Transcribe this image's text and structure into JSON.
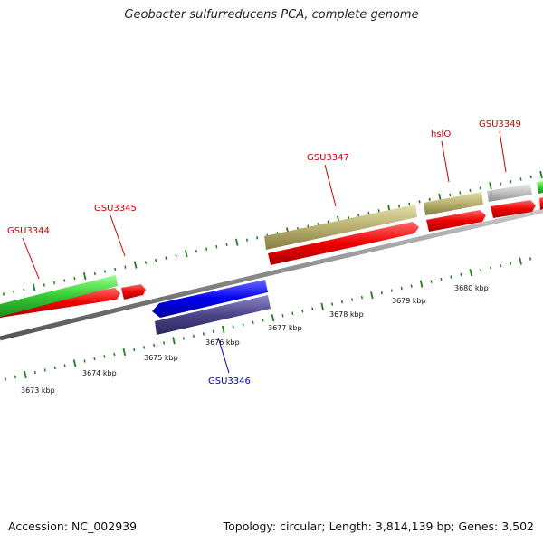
{
  "title": "Geobacter sulfurreducens PCA, complete genome",
  "footer": {
    "accession": "Accession: NC_002939",
    "summary": "Topology: circular; Length: 3,814,139 bp; Genes: 3,502"
  },
  "colors": {
    "backbone": "#8a8a8a",
    "tick": "#1e7f1e",
    "label_forward": "#cc0000",
    "label_reverse": "#0000cc",
    "cds": "#ee0000",
    "gene_green": "#33cc33",
    "gene_blue": "#0000ee",
    "gene_slate": "#4a4488",
    "gene_khaki": "#b8b070",
    "gene_gray": "#c0c0c0"
  },
  "scale": {
    "unit": "kbp",
    "labels": [
      "3673 kbp",
      "3674 kbp",
      "3675 kbp",
      "3676 kbp",
      "3677 kbp",
      "3678 kbp",
      "3679 kbp",
      "3680 kbp"
    ]
  },
  "genes": [
    {
      "id": "gsu3344",
      "label": "GSU3344",
      "strand": "forward"
    },
    {
      "id": "gsu3345",
      "label": "GSU3345",
      "strand": "forward"
    },
    {
      "id": "gsu3346",
      "label": "GSU3346",
      "strand": "reverse"
    },
    {
      "id": "gsu3347",
      "label": "GSU3347",
      "strand": "forward"
    },
    {
      "id": "hslo",
      "label": "hslO",
      "strand": "forward"
    },
    {
      "id": "gsu3349",
      "label": "GSU3349",
      "strand": "forward"
    }
  ]
}
